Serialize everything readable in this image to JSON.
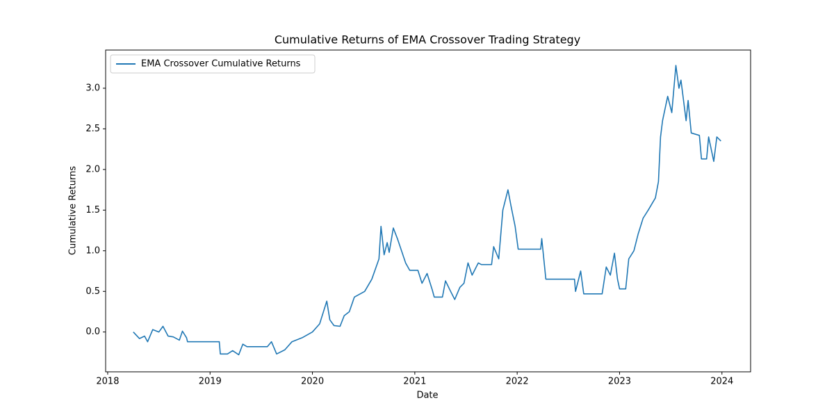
{
  "chart_data": {
    "type": "line",
    "title": "Cumulative Returns of EMA Crossover Trading Strategy",
    "x_label": "Date",
    "y_label": "Cumulative Returns",
    "x": [
      2018.25,
      2018.31,
      2018.36,
      2018.39,
      2018.44,
      2018.5,
      2018.54,
      2018.59,
      2018.64,
      2018.7,
      2018.73,
      2018.77,
      2018.78,
      2019.09,
      2019.1,
      2019.17,
      2019.22,
      2019.28,
      2019.32,
      2019.36,
      2019.56,
      2019.6,
      2019.65,
      2019.73,
      2019.8,
      2019.9,
      2020.0,
      2020.07,
      2020.14,
      2020.17,
      2020.21,
      2020.27,
      2020.31,
      2020.36,
      2020.41,
      2020.51,
      2020.58,
      2020.65,
      2020.67,
      2020.7,
      2020.73,
      2020.75,
      2020.79,
      2020.83,
      2020.87,
      2020.91,
      2020.95,
      2021.03,
      2021.07,
      2021.12,
      2021.17,
      2021.19,
      2021.27,
      2021.3,
      2021.35,
      2021.39,
      2021.44,
      2021.48,
      2021.52,
      2021.56,
      2021.62,
      2021.65,
      2021.75,
      2021.77,
      2021.82,
      2021.86,
      2021.91,
      2021.94,
      2021.98,
      2022.01,
      2022.23,
      2022.24,
      2022.28,
      2022.56,
      2022.57,
      2022.62,
      2022.65,
      2022.83,
      2022.87,
      2022.91,
      2022.95,
      2022.98,
      2023.0,
      2023.06,
      2023.09,
      2023.14,
      2023.18,
      2023.23,
      2023.28,
      2023.35,
      2023.38,
      2023.4,
      2023.42,
      2023.47,
      2023.51,
      2023.55,
      2023.58,
      2023.6,
      2023.65,
      2023.67,
      2023.7,
      2023.78,
      2023.8,
      2023.85,
      2023.87,
      2023.92,
      2023.95,
      2023.99
    ],
    "series": [
      {
        "name": "EMA Crossover Cumulative Returns",
        "color": "#1f77b4",
        "values": [
          0.0,
          -0.08,
          -0.05,
          -0.12,
          0.03,
          0.0,
          0.07,
          -0.05,
          -0.06,
          -0.1,
          0.01,
          -0.07,
          -0.12,
          -0.12,
          -0.27,
          -0.27,
          -0.23,
          -0.28,
          -0.15,
          -0.18,
          -0.18,
          -0.12,
          -0.27,
          -0.22,
          -0.12,
          -0.07,
          0.0,
          0.1,
          0.38,
          0.15,
          0.08,
          0.07,
          0.2,
          0.25,
          0.43,
          0.5,
          0.65,
          0.9,
          1.3,
          0.95,
          1.1,
          0.98,
          1.28,
          1.15,
          1.0,
          0.85,
          0.76,
          0.76,
          0.6,
          0.72,
          0.52,
          0.43,
          0.43,
          0.63,
          0.5,
          0.4,
          0.55,
          0.6,
          0.85,
          0.7,
          0.85,
          0.83,
          0.83,
          1.05,
          0.9,
          1.5,
          1.75,
          1.55,
          1.3,
          1.02,
          1.02,
          1.15,
          0.65,
          0.65,
          0.5,
          0.75,
          0.47,
          0.47,
          0.8,
          0.7,
          0.97,
          0.65,
          0.53,
          0.53,
          0.9,
          1.0,
          1.2,
          1.4,
          1.5,
          1.65,
          1.85,
          2.4,
          2.6,
          2.9,
          2.7,
          3.28,
          3.0,
          3.1,
          2.6,
          2.85,
          2.45,
          2.42,
          2.13,
          2.13,
          2.4,
          2.1,
          2.4,
          2.35
        ]
      }
    ],
    "xlim": [
      2017.98,
      2024.28
    ],
    "xticks": [
      2018,
      2019,
      2020,
      2021,
      2022,
      2023,
      2024
    ],
    "ylim": [
      -0.49,
      3.47
    ],
    "yticks": [
      {
        "value": 0,
        "label": "0.0"
      },
      {
        "value": 0.5,
        "label": "0.5"
      },
      {
        "value": 1,
        "label": "1.0"
      },
      {
        "value": 1.5,
        "label": "1.5"
      },
      {
        "value": 2,
        "label": "2.0"
      },
      {
        "value": 2.5,
        "label": "2.5"
      },
      {
        "value": 3,
        "label": "3.0"
      }
    ],
    "legend": "upper left",
    "grid": false
  }
}
